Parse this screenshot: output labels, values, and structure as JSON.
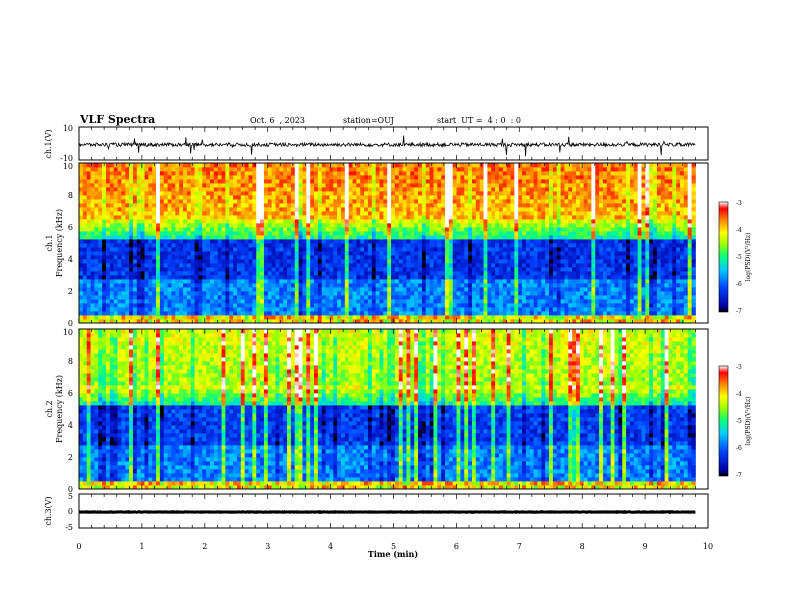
{
  "header": {
    "title": "VLF Spectra",
    "date": "Oct. 6  , 2023",
    "station": "station=OUJ",
    "start": "start  UT =  4 : 0  : 0"
  },
  "chart_data": [
    {
      "type": "line",
      "ylabel": "ch.1(V)",
      "ylim": [
        -10,
        10
      ],
      "yticks": [
        "10",
        "-10"
      ],
      "x_range": [
        0,
        9.8
      ],
      "level": -0.7
    },
    {
      "type": "heatmap",
      "ylabel": "ch.1\nFrequency (kHz)",
      "ylim": [
        0,
        10
      ],
      "yticks": [
        "0",
        "2",
        "4",
        "6",
        "8",
        "10"
      ],
      "colorbar": {
        "label": "log(PSD)(V²/Hz)",
        "range": [
          -7,
          -3
        ],
        "ticks": [
          "-3",
          "-4",
          "-5",
          "-6",
          "-7"
        ]
      },
      "x_range": [
        0,
        9.8
      ]
    },
    {
      "type": "heatmap",
      "ylabel": "ch.2\nFrequency (kHz)",
      "ylim": [
        0,
        10
      ],
      "yticks": [
        "0",
        "2",
        "4",
        "6",
        "8",
        "10"
      ],
      "colorbar": {
        "label": "log(PSD)(V²/Hz)",
        "range": [
          -7,
          -3
        ],
        "ticks": [
          "-3",
          "-4",
          "-5",
          "-6",
          "-7"
        ]
      },
      "x_range": [
        0,
        9.8
      ]
    },
    {
      "type": "line",
      "ylabel": "ch.3(V)",
      "ylim": [
        -5,
        5
      ],
      "yticks": [
        "5",
        "0",
        "-5"
      ],
      "x_range": [
        0,
        9.8
      ],
      "level": -0.3
    }
  ],
  "xaxis": {
    "label": "Time  (min)",
    "range": [
      0,
      10
    ],
    "ticks": [
      "0",
      "1",
      "2",
      "3",
      "4",
      "5",
      "6",
      "7",
      "8",
      "9",
      "10"
    ]
  }
}
